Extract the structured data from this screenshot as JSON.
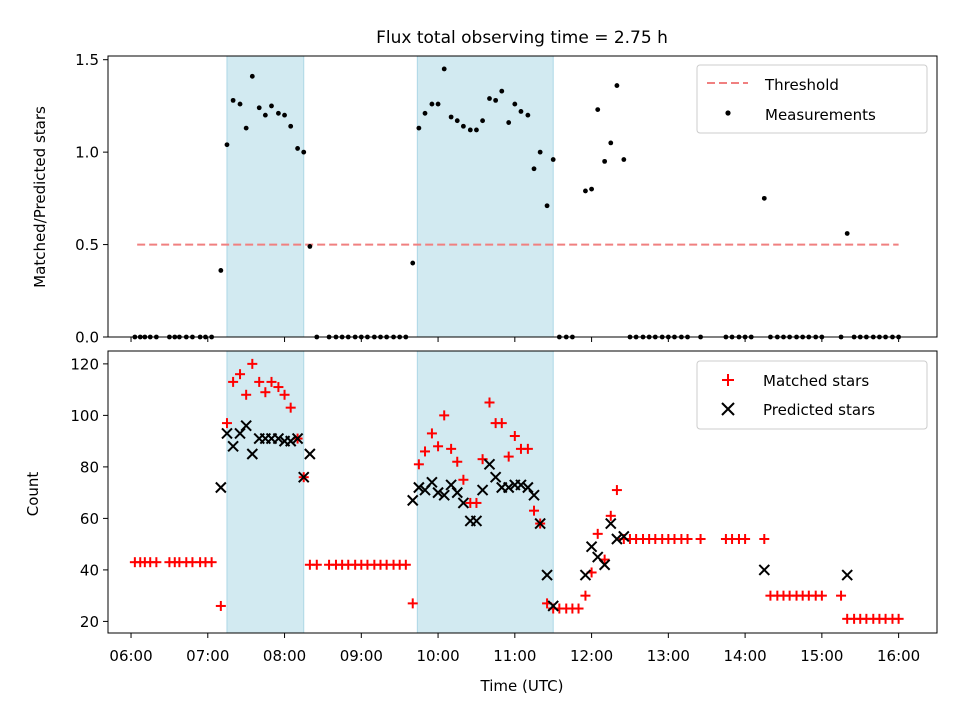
{
  "chart_data": {
    "title": "Flux total observing time = 2.75 h",
    "x_ticks": [
      "06:00",
      "07:00",
      "08:00",
      "09:00",
      "10:00",
      "11:00",
      "12:00",
      "13:00",
      "14:00",
      "15:00",
      "16:00"
    ],
    "xlabel": "Time (UTC)",
    "xlim_hours": [
      5.7,
      16.5
    ],
    "shaded_intervals_hours": [
      [
        7.25,
        8.25
      ],
      [
        9.73,
        11.5
      ]
    ],
    "colors": {
      "threshold": "#f08080",
      "matched": "#ff0000",
      "predicted": "#000000",
      "shade": "#add8e6",
      "measure": "#000000"
    },
    "panels": [
      {
        "type": "scatter",
        "ylabel": "Matched/Predicted stars",
        "ylim": [
          0,
          1.52
        ],
        "y_ticks": [
          "0.0",
          "0.5",
          "1.0",
          "1.5"
        ],
        "y_tick_values": [
          0,
          0.5,
          1.0,
          1.5
        ],
        "threshold": {
          "value": 0.5,
          "x_range_hours": [
            6.08,
            16.0
          ]
        },
        "legend": [
          "Threshold",
          "Measurements"
        ],
        "measurements": [
          [
            6.05,
            0
          ],
          [
            6.12,
            0
          ],
          [
            6.18,
            0
          ],
          [
            6.25,
            0
          ],
          [
            6.33,
            0
          ],
          [
            6.5,
            0
          ],
          [
            6.57,
            0
          ],
          [
            6.63,
            0
          ],
          [
            6.72,
            0
          ],
          [
            6.8,
            0
          ],
          [
            6.9,
            0
          ],
          [
            6.97,
            0
          ],
          [
            7.05,
            0
          ],
          [
            7.17,
            0.36
          ],
          [
            7.25,
            1.04
          ],
          [
            7.33,
            1.28
          ],
          [
            7.42,
            1.26
          ],
          [
            7.5,
            1.13
          ],
          [
            7.58,
            1.41
          ],
          [
            7.67,
            1.24
          ],
          [
            7.75,
            1.2
          ],
          [
            7.83,
            1.25
          ],
          [
            7.92,
            1.21
          ],
          [
            8.0,
            1.2
          ],
          [
            8.08,
            1.14
          ],
          [
            8.17,
            1.02
          ],
          [
            8.25,
            1.0
          ],
          [
            8.33,
            0.49
          ],
          [
            8.42,
            0
          ],
          [
            8.58,
            0
          ],
          [
            8.67,
            0
          ],
          [
            8.75,
            0
          ],
          [
            8.83,
            0
          ],
          [
            8.92,
            0
          ],
          [
            9.0,
            0
          ],
          [
            9.08,
            0
          ],
          [
            9.17,
            0
          ],
          [
            9.25,
            0
          ],
          [
            9.33,
            0
          ],
          [
            9.42,
            0
          ],
          [
            9.5,
            0
          ],
          [
            9.58,
            0
          ],
          [
            9.67,
            0.4
          ],
          [
            9.75,
            1.13
          ],
          [
            9.83,
            1.21
          ],
          [
            9.92,
            1.26
          ],
          [
            10.0,
            1.26
          ],
          [
            10.08,
            1.45
          ],
          [
            10.17,
            1.19
          ],
          [
            10.25,
            1.17
          ],
          [
            10.33,
            1.14
          ],
          [
            10.42,
            1.12
          ],
          [
            10.5,
            1.12
          ],
          [
            10.58,
            1.17
          ],
          [
            10.67,
            1.29
          ],
          [
            10.75,
            1.28
          ],
          [
            10.83,
            1.33
          ],
          [
            10.92,
            1.16
          ],
          [
            11.0,
            1.26
          ],
          [
            11.08,
            1.22
          ],
          [
            11.17,
            1.2
          ],
          [
            11.25,
            0.91
          ],
          [
            11.33,
            1.0
          ],
          [
            11.42,
            0.71
          ],
          [
            11.5,
            0.96
          ],
          [
            11.58,
            0
          ],
          [
            11.67,
            0
          ],
          [
            11.75,
            0
          ],
          [
            11.92,
            0.79
          ],
          [
            12.0,
            0.8
          ],
          [
            12.08,
            1.23
          ],
          [
            12.17,
            0.95
          ],
          [
            12.25,
            1.05
          ],
          [
            12.33,
            1.36
          ],
          [
            12.42,
            0.96
          ],
          [
            12.5,
            0
          ],
          [
            12.58,
            0
          ],
          [
            12.67,
            0
          ],
          [
            12.75,
            0
          ],
          [
            12.83,
            0
          ],
          [
            12.92,
            0
          ],
          [
            13.0,
            0
          ],
          [
            13.08,
            0
          ],
          [
            13.17,
            0
          ],
          [
            13.25,
            0
          ],
          [
            13.42,
            0
          ],
          [
            13.75,
            0
          ],
          [
            13.83,
            0
          ],
          [
            13.92,
            0
          ],
          [
            14.0,
            0
          ],
          [
            14.08,
            0
          ],
          [
            14.25,
            0.75
          ],
          [
            14.33,
            0
          ],
          [
            14.42,
            0
          ],
          [
            14.5,
            0
          ],
          [
            14.58,
            0
          ],
          [
            14.67,
            0
          ],
          [
            14.75,
            0
          ],
          [
            14.83,
            0
          ],
          [
            14.92,
            0
          ],
          [
            15.0,
            0
          ],
          [
            15.25,
            0
          ],
          [
            15.33,
            0.56
          ],
          [
            15.42,
            0
          ],
          [
            15.5,
            0
          ],
          [
            15.58,
            0
          ],
          [
            15.67,
            0
          ],
          [
            15.75,
            0
          ],
          [
            15.83,
            0
          ],
          [
            15.92,
            0
          ],
          [
            16.0,
            0
          ]
        ]
      },
      {
        "type": "scatter",
        "ylabel": "Count",
        "ylim": [
          15.5,
          125
        ],
        "y_ticks": [
          "20",
          "40",
          "60",
          "80",
          "100",
          "120"
        ],
        "y_tick_values": [
          20,
          40,
          60,
          80,
          100,
          120
        ],
        "legend": [
          "Matched stars",
          "Predicted stars"
        ],
        "matched": [
          [
            6.05,
            43
          ],
          [
            6.12,
            43
          ],
          [
            6.18,
            43
          ],
          [
            6.25,
            43
          ],
          [
            6.33,
            43
          ],
          [
            6.5,
            43
          ],
          [
            6.57,
            43
          ],
          [
            6.63,
            43
          ],
          [
            6.72,
            43
          ],
          [
            6.8,
            43
          ],
          [
            6.9,
            43
          ],
          [
            6.97,
            43
          ],
          [
            7.05,
            43
          ],
          [
            7.17,
            26
          ],
          [
            7.25,
            97
          ],
          [
            7.33,
            113
          ],
          [
            7.42,
            116
          ],
          [
            7.5,
            108
          ],
          [
            7.58,
            120
          ],
          [
            7.67,
            113
          ],
          [
            7.75,
            109
          ],
          [
            7.83,
            113
          ],
          [
            7.92,
            111
          ],
          [
            8.0,
            108
          ],
          [
            8.08,
            103
          ],
          [
            8.17,
            91
          ],
          [
            8.25,
            76
          ],
          [
            8.33,
            42
          ],
          [
            8.42,
            42
          ],
          [
            8.58,
            42
          ],
          [
            8.67,
            42
          ],
          [
            8.75,
            42
          ],
          [
            8.83,
            42
          ],
          [
            8.92,
            42
          ],
          [
            9.0,
            42
          ],
          [
            9.08,
            42
          ],
          [
            9.17,
            42
          ],
          [
            9.25,
            42
          ],
          [
            9.33,
            42
          ],
          [
            9.42,
            42
          ],
          [
            9.5,
            42
          ],
          [
            9.58,
            42
          ],
          [
            9.67,
            27
          ],
          [
            9.75,
            81
          ],
          [
            9.83,
            86
          ],
          [
            9.92,
            93
          ],
          [
            10.0,
            88
          ],
          [
            10.08,
            100
          ],
          [
            10.17,
            87
          ],
          [
            10.25,
            82
          ],
          [
            10.33,
            75
          ],
          [
            10.42,
            66
          ],
          [
            10.5,
            66
          ],
          [
            10.58,
            83
          ],
          [
            10.67,
            105
          ],
          [
            10.75,
            97
          ],
          [
            10.83,
            97
          ],
          [
            10.92,
            84
          ],
          [
            11.0,
            92
          ],
          [
            11.08,
            87
          ],
          [
            11.17,
            87
          ],
          [
            11.25,
            63
          ],
          [
            11.33,
            58
          ],
          [
            11.42,
            27
          ],
          [
            11.5,
            25
          ],
          [
            11.58,
            25
          ],
          [
            11.67,
            25
          ],
          [
            11.75,
            25
          ],
          [
            11.83,
            25
          ],
          [
            11.92,
            30
          ],
          [
            12.0,
            39
          ],
          [
            12.08,
            54
          ],
          [
            12.17,
            44
          ],
          [
            12.25,
            61
          ],
          [
            12.33,
            71
          ],
          [
            12.42,
            52
          ],
          [
            12.5,
            52
          ],
          [
            12.58,
            52
          ],
          [
            12.67,
            52
          ],
          [
            12.75,
            52
          ],
          [
            12.83,
            52
          ],
          [
            12.92,
            52
          ],
          [
            13.0,
            52
          ],
          [
            13.08,
            52
          ],
          [
            13.17,
            52
          ],
          [
            13.25,
            52
          ],
          [
            13.42,
            52
          ],
          [
            13.75,
            52
          ],
          [
            13.83,
            52
          ],
          [
            13.92,
            52
          ],
          [
            14.0,
            52
          ],
          [
            14.25,
            52
          ],
          [
            14.33,
            30
          ],
          [
            14.42,
            30
          ],
          [
            14.5,
            30
          ],
          [
            14.58,
            30
          ],
          [
            14.67,
            30
          ],
          [
            14.75,
            30
          ],
          [
            14.83,
            30
          ],
          [
            14.92,
            30
          ],
          [
            15.0,
            30
          ],
          [
            15.25,
            30
          ],
          [
            15.33,
            21
          ],
          [
            15.42,
            21
          ],
          [
            15.5,
            21
          ],
          [
            15.58,
            21
          ],
          [
            15.67,
            21
          ],
          [
            15.75,
            21
          ],
          [
            15.83,
            21
          ],
          [
            15.92,
            21
          ],
          [
            16.0,
            21
          ]
        ],
        "predicted": [
          [
            7.17,
            72
          ],
          [
            7.25,
            93
          ],
          [
            7.33,
            88
          ],
          [
            7.42,
            93
          ],
          [
            7.5,
            96
          ],
          [
            7.58,
            85
          ],
          [
            7.67,
            91
          ],
          [
            7.75,
            91
          ],
          [
            7.83,
            91
          ],
          [
            7.92,
            91
          ],
          [
            8.0,
            90
          ],
          [
            8.08,
            90
          ],
          [
            8.17,
            91
          ],
          [
            8.25,
            76
          ],
          [
            8.33,
            85
          ],
          [
            9.67,
            67
          ],
          [
            9.75,
            72
          ],
          [
            9.83,
            71
          ],
          [
            9.92,
            74
          ],
          [
            10.0,
            70
          ],
          [
            10.08,
            69
          ],
          [
            10.17,
            73
          ],
          [
            10.25,
            70
          ],
          [
            10.33,
            66
          ],
          [
            10.42,
            59
          ],
          [
            10.5,
            59
          ],
          [
            10.58,
            71
          ],
          [
            10.67,
            81
          ],
          [
            10.75,
            76
          ],
          [
            10.83,
            72
          ],
          [
            10.92,
            72
          ],
          [
            11.0,
            73
          ],
          [
            11.08,
            73
          ],
          [
            11.17,
            72
          ],
          [
            11.25,
            69
          ],
          [
            11.33,
            58
          ],
          [
            11.42,
            38
          ],
          [
            11.5,
            26
          ],
          [
            11.92,
            38
          ],
          [
            12.0,
            49
          ],
          [
            12.08,
            45
          ],
          [
            12.17,
            42
          ],
          [
            12.25,
            58
          ],
          [
            12.33,
            52
          ],
          [
            12.42,
            53
          ],
          [
            14.25,
            40
          ],
          [
            15.33,
            38
          ]
        ]
      }
    ]
  }
}
